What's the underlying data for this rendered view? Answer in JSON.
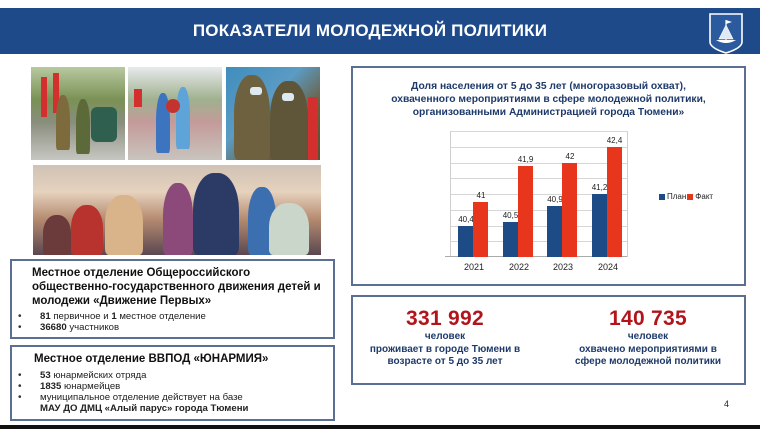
{
  "header": {
    "title": "ПОКАЗАТЕЛИ МОЛОДЕЖНОЙ ПОЛИТИКИ",
    "crest_icon": "city-crest-ship-icon",
    "background_color": "#1e4a8a"
  },
  "photos": [
    {
      "name": "parade-vehicle-photo"
    },
    {
      "name": "flower-laying-photo"
    },
    {
      "name": "singers-in-uniform-photo"
    },
    {
      "name": "youth-group-photo"
    }
  ],
  "organizations": [
    {
      "heading": "Местное отделение Общероссийского общественно-государственного движения детей и молодежи «Движение Первых»",
      "items": [
        {
          "bold": "81",
          "text": " первичное  и ",
          "bold2": "1",
          "text2": " местное отделение"
        },
        {
          "bold": "36680",
          "text": " участников"
        }
      ]
    },
    {
      "heading": "Местное отделение ВВПОД «ЮНАРМИЯ»",
      "items": [
        {
          "bold": "53",
          "text": " юнармейских отряда"
        },
        {
          "bold": "1835",
          "text": " юнармейцев"
        },
        {
          "text": "муниципальное отделение действует на базе",
          "bold_line": "МАУ ДО ДМЦ «Алый парус» города Тюмени"
        }
      ]
    }
  ],
  "chart_data": {
    "type": "bar",
    "title": "Доля населения от 5 до 35 лет (многоразовый охват), охваченного мероприятиями в сфере молодежной политики, организованными Администрацией города Тюмени»",
    "title_lines": [
      "Доля населения от 5 до 35 лет (многоразовый охват),",
      "охваченного мероприятиями в сфере молодежной политики,",
      "организованными Администрацией города Тюмени»"
    ],
    "categories": [
      "2021",
      "2022",
      "2023",
      "2024"
    ],
    "series": [
      {
        "name": "План",
        "color": "#1c4b86",
        "values": [
          40.4,
          40.5,
          40.9,
          41.2
        ],
        "labels": [
          "40,4",
          "40,5",
          "40,9",
          "41,2"
        ]
      },
      {
        "name": "Факт",
        "color": "#e8361c",
        "values": [
          41,
          41.9,
          42,
          42.4
        ],
        "labels": [
          "41",
          "41,9",
          "42",
          "42,4"
        ]
      }
    ],
    "xlabel": "",
    "ylabel": "",
    "ylim": [
      39.6,
      42.8
    ],
    "grid": true,
    "legend_position": "right"
  },
  "stats": [
    {
      "number": "331 992",
      "unit": "человек",
      "line1": "проживает в городе Тюмени в",
      "line2": "возрасте от 5 до 35 лет"
    },
    {
      "number": "140 735",
      "unit": "человек",
      "line1": "охвачено мероприятиями в",
      "line2": "сфере молодежной политики"
    }
  ],
  "page_number": "4"
}
